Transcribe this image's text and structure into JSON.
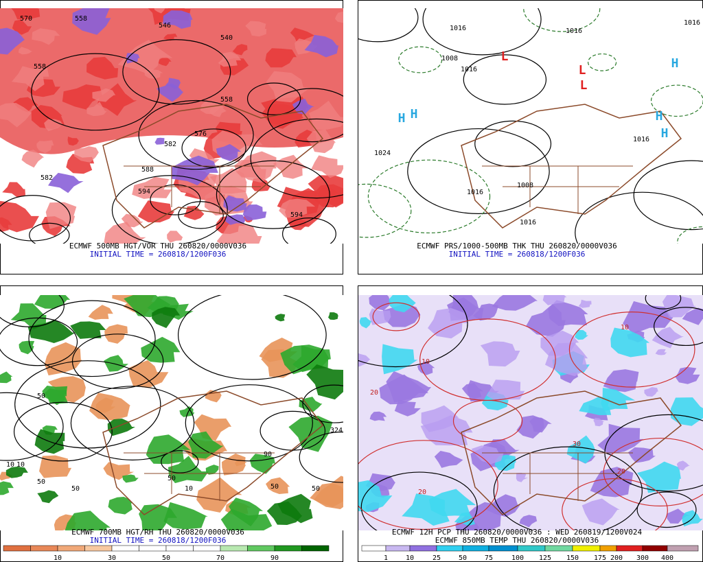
{
  "panels": [
    {
      "caption": "ECMWF 500MB HGT/VOR THU 260820/0000V036",
      "subcaption": "INITIAL TIME = 260818/1200F036",
      "labels": [
        "570",
        "558",
        "546",
        "540",
        "558",
        "558",
        "582",
        "576",
        "582",
        "588",
        "594",
        "594"
      ]
    },
    {
      "caption": "ECMWF PRS/1000-500MB THK THU 260820/0000V036",
      "subcaption": "INITIAL TIME = 260818/1200F036",
      "labels": [
        "1016",
        "1016",
        "1008",
        "1016",
        "1024",
        "1016",
        "1008",
        "1016",
        "1016",
        "H",
        "H",
        "L",
        "L",
        "L",
        "H",
        "H",
        "H",
        "1016"
      ]
    },
    {
      "caption": "ECMWF 700MB HGT/RH THU 260820/0000V036",
      "subcaption": "INITIAL TIME = 260818/1200F036",
      "labels": [
        "50",
        "10",
        "50",
        "90",
        "50",
        "10",
        "50",
        "50",
        "10",
        "50",
        "324"
      ]
    },
    {
      "caption": "ECMWF 12H PCP THU 260820/0000V036 : WED 260819/1200V024",
      "subcaption": "ECMWF 850MB TEMP THU 260820/0000V036",
      "labels": [
        "10",
        "20",
        "20",
        "30",
        "10",
        "20"
      ]
    }
  ],
  "colorbars": [
    {
      "labels": [
        "10",
        "30",
        "50",
        "70",
        "90"
      ]
    },
    {
      "labels": [
        "1",
        "10",
        "25",
        "50",
        "75",
        "100",
        "125",
        "150",
        "175",
        "200",
        "300",
        "400"
      ]
    }
  ]
}
